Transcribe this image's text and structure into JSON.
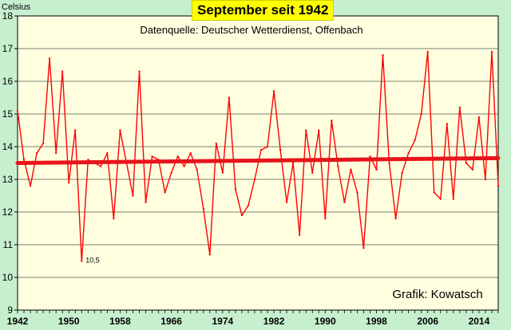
{
  "chart_data": {
    "type": "line",
    "title": "September seit 1942",
    "subtitle": "Datenquelle: Deutscher Wetterdienst, Offenbach",
    "ylabel": "Celsius",
    "credit": "Grafik: Kowatsch",
    "annotation": {
      "text": "10,5",
      "x": 1952,
      "y": 10.5
    },
    "ylim": [
      9,
      18
    ],
    "yticks": [
      9,
      10,
      11,
      12,
      13,
      14,
      15,
      16,
      17,
      18
    ],
    "xlim": [
      1942,
      2017
    ],
    "xticks": [
      1942,
      1950,
      1958,
      1966,
      1974,
      1982,
      1990,
      1998,
      2006,
      2014
    ],
    "grid": true,
    "colors": {
      "series": "#ff0000",
      "trend": "#e8141b",
      "background": "#c6efce",
      "plot_background": "#ffffe0",
      "title_box": "#ffff00"
    },
    "series": [
      {
        "x": [
          1942,
          1943,
          1944,
          1945,
          1946,
          1947,
          1948,
          1949,
          1950,
          1951,
          1952,
          1953,
          1954,
          1955,
          1956,
          1957,
          1958,
          1959,
          1960,
          1961,
          1962,
          1963,
          1964,
          1965,
          1966,
          1967,
          1968,
          1969,
          1970,
          1971,
          1972,
          1973,
          1974,
          1975,
          1976,
          1977,
          1978,
          1979,
          1980,
          1981,
          1982,
          1983,
          1984,
          1985,
          1986,
          1987,
          1988,
          1989,
          1990,
          1991,
          1992,
          1993,
          1994,
          1995,
          1996,
          1997,
          1998,
          1999,
          2000,
          2001,
          2002,
          2003,
          2004,
          2005,
          2006,
          2007,
          2008,
          2009,
          2010,
          2011,
          2012,
          2013,
          2014,
          2015,
          2016,
          2017
        ],
        "values": [
          15.1,
          13.6,
          12.8,
          13.8,
          14.1,
          16.7,
          13.8,
          16.3,
          12.9,
          14.5,
          10.5,
          13.6,
          13.5,
          13.4,
          13.8,
          11.8,
          14.5,
          13.5,
          12.5,
          16.3,
          12.3,
          13.7,
          13.6,
          12.6,
          13.2,
          13.7,
          13.4,
          13.8,
          13.3,
          12.1,
          10.7,
          14.1,
          13.2,
          15.5,
          12.7,
          11.9,
          12.2,
          13.0,
          13.9,
          14.0,
          15.7,
          13.9,
          12.3,
          13.5,
          11.3,
          14.5,
          13.2,
          14.5,
          11.8,
          14.8,
          13.4,
          12.3,
          13.3,
          12.6,
          10.9,
          13.7,
          13.3,
          16.8,
          13.5,
          11.8,
          13.2,
          13.8,
          14.2,
          15.0,
          16.9,
          12.6,
          12.4,
          14.7,
          12.4,
          15.2,
          13.5,
          13.3,
          14.9,
          13.0,
          16.9,
          12.8
        ]
      }
    ],
    "trend": {
      "start": {
        "x": 1942,
        "y": 13.5
      },
      "end": {
        "x": 2017,
        "y": 13.65
      }
    }
  }
}
